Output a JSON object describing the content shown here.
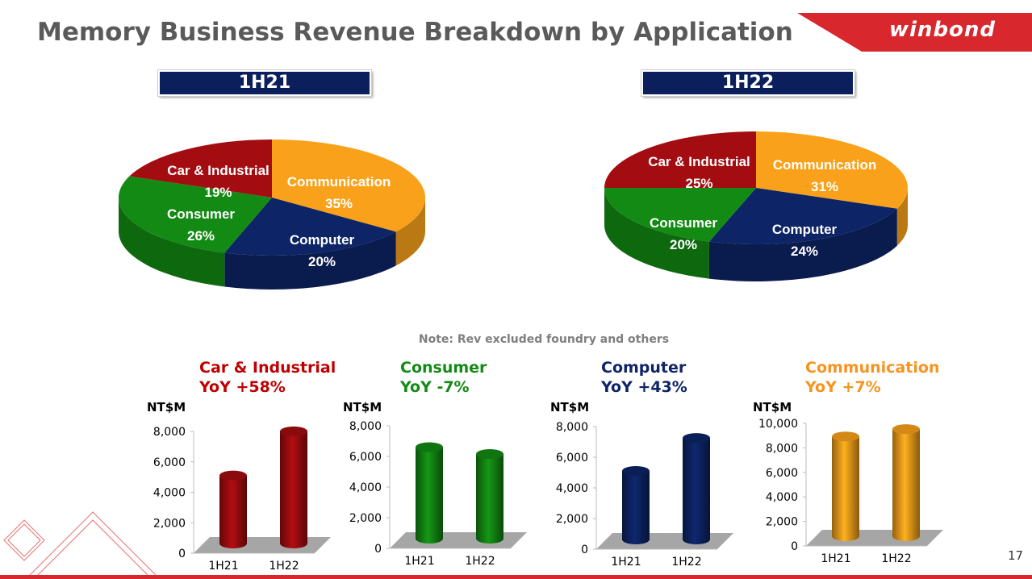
{
  "title": "Memory Business Revenue Breakdown by Application",
  "logo": "winbond",
  "note": "Note: Rev excluded foundry and others",
  "page_number": "17",
  "colors": {
    "car": "#a30c10",
    "consumer": "#138a13",
    "computer": "#0d2466",
    "communication": "#f9a11b",
    "accent": "#d9272e"
  },
  "chart_data": [
    {
      "type": "pie",
      "title": "1H21",
      "categories": [
        "Communication",
        "Computer",
        "Consumer",
        "Car & Industrial"
      ],
      "values": [
        35,
        20,
        26,
        19
      ],
      "labels": [
        "35%",
        "20%",
        "26%",
        "19%"
      ]
    },
    {
      "type": "pie",
      "title": "1H22",
      "categories": [
        "Communication",
        "Computer",
        "Consumer",
        "Car & Industrial"
      ],
      "values": [
        31,
        24,
        20,
        25
      ],
      "labels": [
        "31%",
        "24%",
        "20%",
        "25%"
      ]
    },
    {
      "type": "bar",
      "title": "Car & Industrial",
      "subtitle": "YoY  +58%",
      "ylabel": "NT$M",
      "categories": [
        "1H21",
        "1H22"
      ],
      "values": [
        5000,
        7900
      ],
      "ylim": [
        0,
        8000
      ],
      "ticks": [
        "0",
        "2,000",
        "4,000",
        "6,000",
        "8,000"
      ]
    },
    {
      "type": "bar",
      "title": "Consumer",
      "subtitle": "YoY  -7%",
      "ylabel": "NT$M",
      "categories": [
        "1H21",
        "1H22"
      ],
      "values": [
        6500,
        6050
      ],
      "ylim": [
        0,
        8000
      ],
      "ticks": [
        "0",
        "2,000",
        "4,000",
        "6,000",
        "8,000"
      ]
    },
    {
      "type": "bar",
      "title": "Computer",
      "subtitle": "YoY  +43%",
      "ylabel": "NT$M",
      "categories": [
        "1H21",
        "1H22"
      ],
      "values": [
        5000,
        7150
      ],
      "ylim": [
        0,
        8000
      ],
      "ticks": [
        "0",
        "2,000",
        "4,000",
        "6,000",
        "8,000"
      ]
    },
    {
      "type": "bar",
      "title": "Communication",
      "subtitle": "YoY  +7%",
      "ylabel": "NT$M",
      "categories": [
        "1H21",
        "1H22"
      ],
      "values": [
        8800,
        9400
      ],
      "ylim": [
        0,
        10000
      ],
      "ticks": [
        "0",
        "2,000",
        "4,000",
        "6,000",
        "8,000",
        "10,000"
      ]
    }
  ]
}
